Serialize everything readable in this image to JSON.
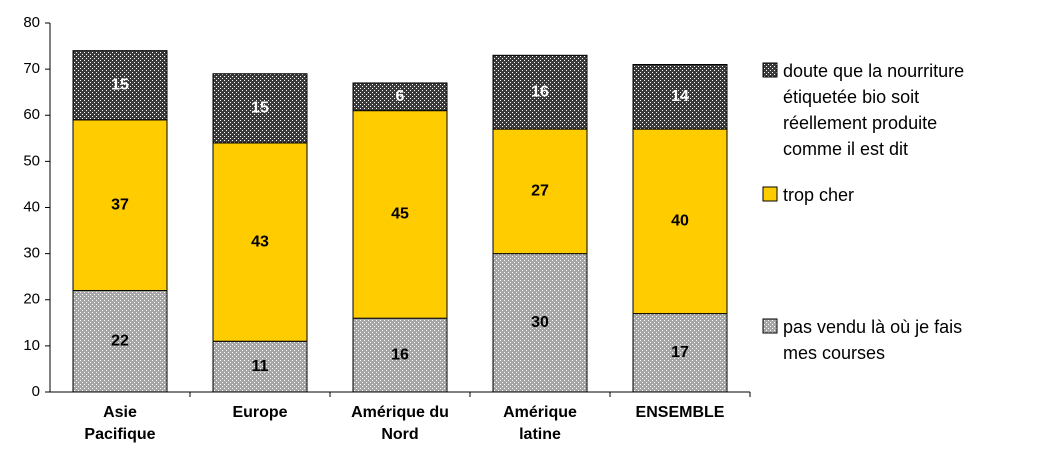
{
  "chart_data": {
    "type": "stacked_bar",
    "categories": [
      "Asie\nPacifique",
      "Europe",
      "Amérique du\nNord",
      "Amérique\nlatine",
      "ENSEMBLE"
    ],
    "series": [
      {
        "name": "pas vendu là où je fais\nmes courses",
        "color": "#a6a6a6",
        "hatch": "dots",
        "values": [
          22,
          11,
          16,
          30,
          17
        ]
      },
      {
        "name": "trop cher",
        "color": "#ffcc00",
        "values": [
          37,
          43,
          45,
          27,
          40
        ]
      },
      {
        "name": "doute que la nourriture\nétiquetée bio soit\nréellement produite\ncomme il est dit",
        "color": "#3a3a3a",
        "hatch": "dots",
        "values": [
          15,
          15,
          6,
          16,
          14
        ]
      }
    ],
    "ylim": [
      0,
      80
    ],
    "yticks": [
      0,
      10,
      20,
      30,
      40,
      50,
      60,
      70,
      80
    ],
    "grid": false,
    "legend": "right"
  }
}
